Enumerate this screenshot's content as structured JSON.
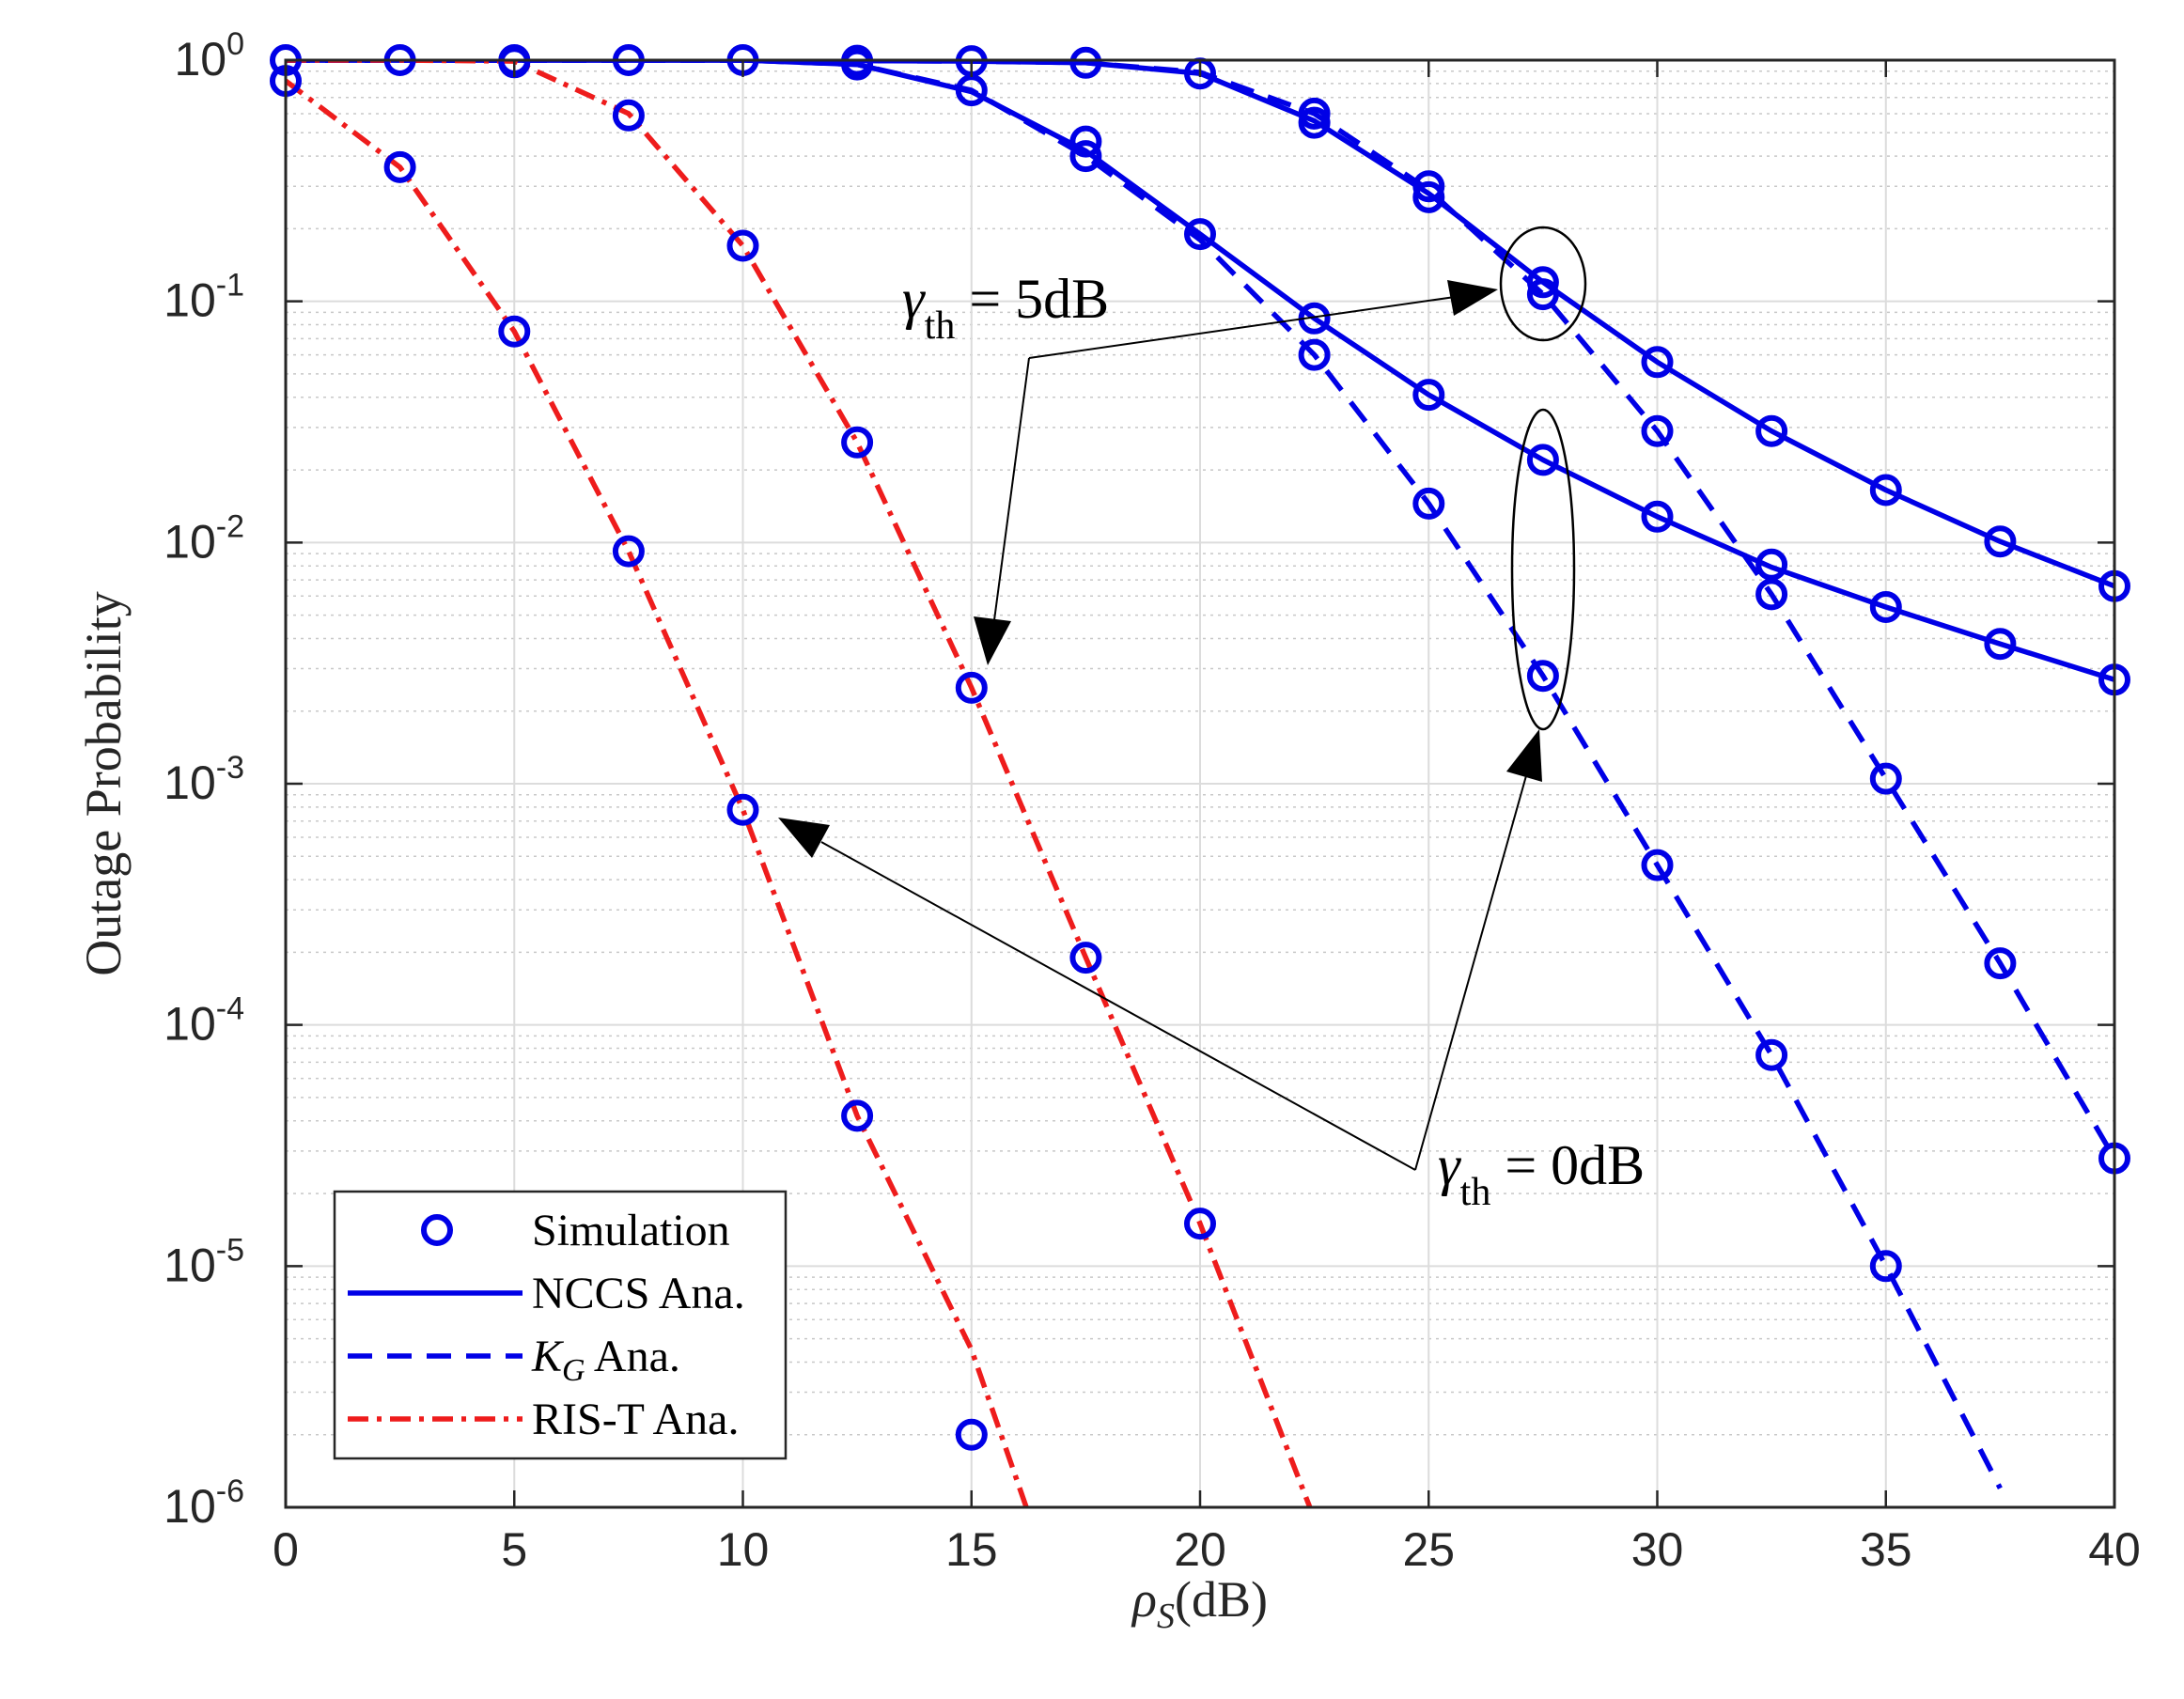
{
  "chart_data": {
    "type": "line",
    "title": "",
    "xlabel": "ρ_S(dB)",
    "xlabel_parts": {
      "symbol": "ρ",
      "subscript": "S",
      "unit": "(dB)"
    },
    "ylabel": "Outage Probability",
    "xlim": [
      0,
      40
    ],
    "ylim": [
      1e-06,
      1
    ],
    "yscale": "log",
    "grid": true,
    "x_ticks": [
      "0",
      "5",
      "10",
      "15",
      "20",
      "25",
      "30",
      "35",
      "40"
    ],
    "y_ticks": [
      {
        "base": "10",
        "exp": "0"
      },
      {
        "base": "10",
        "exp": "-1"
      },
      {
        "base": "10",
        "exp": "-2"
      },
      {
        "base": "10",
        "exp": "-3"
      },
      {
        "base": "10",
        "exp": "-4"
      },
      {
        "base": "10",
        "exp": "-5"
      },
      {
        "base": "10",
        "exp": "-6"
      }
    ],
    "legend": {
      "position": "bottom-left",
      "entries": [
        {
          "label": "Simulation",
          "style": "marker",
          "color": "#0000e6"
        },
        {
          "label": "NCCS Ana.",
          "style": "solid",
          "color": "#0000e6"
        },
        {
          "label": "K_G Ana.",
          "style": "dashed",
          "color": "#0000e6",
          "math_symbol": "K",
          "math_subscript": "G",
          "suffix": " Ana."
        },
        {
          "label": "RIS-T Ana.",
          "style": "dashdot",
          "color": "#ee1c1c"
        }
      ]
    },
    "series": [
      {
        "name": "NCCS Ana. (γth = 5dB)",
        "style": "solid",
        "color": "#0000e6",
        "x": [
          0,
          2.5,
          5,
          7.5,
          10,
          12.5,
          15,
          17.5,
          20,
          22.5,
          25,
          27.5,
          30,
          32.5,
          35,
          37.5,
          40
        ],
        "y": [
          1,
          1,
          1,
          1,
          1,
          0.995,
          0.99,
          0.975,
          0.88,
          0.56,
          0.28,
          0.12,
          0.056,
          0.029,
          0.0165,
          0.0101,
          0.0066
        ]
      },
      {
        "name": "NCCS Ana. (γth = 0dB)",
        "style": "solid",
        "color": "#0000e6",
        "x": [
          0,
          2.5,
          5,
          7.5,
          10,
          12.5,
          15,
          17.5,
          20,
          22.5,
          25,
          27.5,
          30,
          32.5,
          35,
          37.5,
          40
        ],
        "y": [
          1,
          1,
          1,
          1,
          1,
          0.96,
          0.74,
          0.42,
          0.19,
          0.085,
          0.041,
          0.022,
          0.0128,
          0.0079,
          0.0054,
          0.0038,
          0.0027
        ]
      },
      {
        "name": "K_G Ana. (γth = 5dB)",
        "style": "dashed",
        "color": "#0000e6",
        "x": [
          0,
          2.5,
          5,
          7.5,
          10,
          12.5,
          15,
          17.5,
          20,
          22.5,
          25,
          27.5,
          30,
          32.5,
          35,
          37.5,
          40
        ],
        "y": [
          1,
          1,
          1,
          1,
          1,
          0.995,
          0.99,
          0.975,
          0.89,
          0.6,
          0.29,
          0.107,
          0.029,
          0.0061,
          0.00105,
          0.00018,
          2.8e-05
        ]
      },
      {
        "name": "K_G Ana. (γth = 0dB)",
        "style": "dashed",
        "color": "#0000e6",
        "x": [
          0,
          2.5,
          5,
          7.5,
          10,
          12.5,
          15,
          17.5,
          20,
          22.5,
          25,
          27.5,
          30,
          32.5,
          35,
          37.5
        ],
        "y": [
          1,
          1,
          1,
          1,
          1,
          0.96,
          0.75,
          0.4,
          0.18,
          0.06,
          0.0145,
          0.0028,
          0.00046,
          7.5e-05,
          1e-05,
          1.2e-06
        ]
      },
      {
        "name": "RIS-T Ana. (γth = 5dB)",
        "style": "dashdot",
        "color": "#ee1c1c",
        "x": [
          0,
          2.5,
          5,
          7.5,
          10,
          12.5,
          15,
          17.5,
          20,
          22.4
        ],
        "y": [
          1,
          1,
          0.99,
          0.6,
          0.17,
          0.026,
          0.0025,
          0.00019,
          1.5e-05,
          1e-06
        ]
      },
      {
        "name": "RIS-T Ana. (γth = 0dB)",
        "style": "dashdot",
        "color": "#ee1c1c",
        "x": [
          0,
          2.5,
          5,
          7.5,
          10,
          12.5,
          15,
          16.2
        ],
        "y": [
          0.82,
          0.36,
          0.075,
          0.0092,
          0.00078,
          4.2e-05,
          4.5e-06,
          1e-06
        ]
      }
    ],
    "simulation_points": [
      {
        "x": 0,
        "y": 1
      },
      {
        "x": 2.5,
        "y": 1
      },
      {
        "x": 5,
        "y": 1
      },
      {
        "x": 7.5,
        "y": 1
      },
      {
        "x": 10,
        "y": 1
      },
      {
        "x": 12.5,
        "y": 0.995
      },
      {
        "x": 15,
        "y": 0.99
      },
      {
        "x": 17.5,
        "y": 0.975
      },
      {
        "x": 20,
        "y": 0.88
      },
      {
        "x": 22.5,
        "y": 0.6
      },
      {
        "x": 22.5,
        "y": 0.55
      },
      {
        "x": 25,
        "y": 0.3
      },
      {
        "x": 25,
        "y": 0.27
      },
      {
        "x": 27.5,
        "y": 0.12
      },
      {
        "x": 27.5,
        "y": 0.107
      },
      {
        "x": 30,
        "y": 0.056
      },
      {
        "x": 32.5,
        "y": 0.029
      },
      {
        "x": 35,
        "y": 0.0165
      },
      {
        "x": 37.5,
        "y": 0.0101
      },
      {
        "x": 40,
        "y": 0.0066
      },
      {
        "x": 12.5,
        "y": 0.96
      },
      {
        "x": 15,
        "y": 0.75
      },
      {
        "x": 17.5,
        "y": 0.46
      },
      {
        "x": 17.5,
        "y": 0.4
      },
      {
        "x": 20,
        "y": 0.19
      },
      {
        "x": 22.5,
        "y": 0.085
      },
      {
        "x": 25,
        "y": 0.041
      },
      {
        "x": 27.5,
        "y": 0.022
      },
      {
        "x": 30,
        "y": 0.0128
      },
      {
        "x": 32.5,
        "y": 0.0081
      },
      {
        "x": 35,
        "y": 0.0054
      },
      {
        "x": 37.5,
        "y": 0.0038
      },
      {
        "x": 40,
        "y": 0.0027
      },
      {
        "x": 22.5,
        "y": 0.06
      },
      {
        "x": 25,
        "y": 0.0145
      },
      {
        "x": 27.5,
        "y": 0.0028
      },
      {
        "x": 30,
        "y": 0.00046
      },
      {
        "x": 32.5,
        "y": 7.5e-05
      },
      {
        "x": 35,
        "y": 1e-05
      },
      {
        "x": 30,
        "y": 0.029
      },
      {
        "x": 32.5,
        "y": 0.0061
      },
      {
        "x": 35,
        "y": 0.00105
      },
      {
        "x": 37.5,
        "y": 0.00018
      },
      {
        "x": 40,
        "y": 2.8e-05
      },
      {
        "x": 0,
        "y": 0.82
      },
      {
        "x": 2.5,
        "y": 0.36
      },
      {
        "x": 5,
        "y": 0.075
      },
      {
        "x": 7.5,
        "y": 0.0092
      },
      {
        "x": 10,
        "y": 0.00078
      },
      {
        "x": 12.5,
        "y": 4.2e-05
      },
      {
        "x": 15,
        "y": 2e-06
      },
      {
        "x": 5,
        "y": 0.98
      },
      {
        "x": 7.5,
        "y": 0.59
      },
      {
        "x": 10,
        "y": 0.17
      },
      {
        "x": 12.5,
        "y": 0.026
      },
      {
        "x": 15,
        "y": 0.0025
      },
      {
        "x": 17.5,
        "y": 0.00019
      },
      {
        "x": 20,
        "y": 1.5e-05
      }
    ],
    "annotations": [
      {
        "symbol": "γ",
        "subscript": "th",
        "value": " = 5dB"
      },
      {
        "symbol": "γ",
        "subscript": "th",
        "value": " = 0dB"
      }
    ]
  }
}
